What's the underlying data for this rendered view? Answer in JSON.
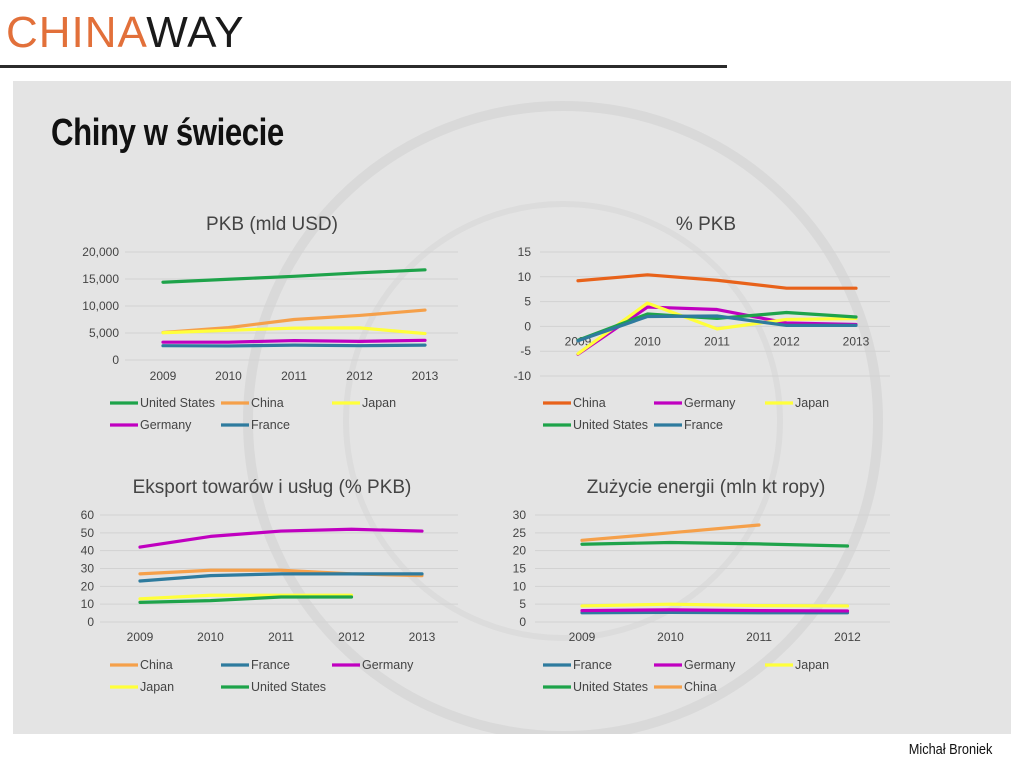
{
  "logo": {
    "part1": "CHINA",
    "part2": "WAY"
  },
  "slide_title": "Chiny w świecie",
  "author": "Michał Broniek",
  "chart_data": [
    {
      "type": "line",
      "title": "PKB (mld USD)",
      "x": [
        "2009",
        "2010",
        "2011",
        "2012",
        "2013"
      ],
      "ylim": [
        0,
        20000
      ],
      "yticks": [
        "0",
        "5,000",
        "10,000",
        "15,000",
        "20,000"
      ],
      "ytick_values": [
        0,
        5000,
        10000,
        15000,
        20000
      ],
      "legend": "bottom",
      "series": [
        {
          "name": "United States",
          "color": "#1ea34a",
          "values": [
            14400,
            14950,
            15500,
            16150,
            16700
          ]
        },
        {
          "name": "China",
          "color": "#f5a04a",
          "values": [
            5100,
            6000,
            7500,
            8250,
            9250
          ]
        },
        {
          "name": "Japan",
          "color": "#ffff3a",
          "values": [
            5050,
            5500,
            5900,
            5950,
            4900
          ]
        },
        {
          "name": "Germany",
          "color": "#c000c0",
          "values": [
            3300,
            3300,
            3600,
            3450,
            3650
          ]
        },
        {
          "name": "France",
          "color": "#2e7b9e",
          "values": [
            2650,
            2600,
            2750,
            2650,
            2750
          ]
        }
      ]
    },
    {
      "type": "line",
      "title": "% PKB",
      "x": [
        "2009",
        "2010",
        "2011",
        "2012",
        "2013"
      ],
      "ylim": [
        -10,
        15
      ],
      "yticks": [
        "-10",
        "-5",
        "0",
        "5",
        "10",
        "15"
      ],
      "ytick_values": [
        -10,
        -5,
        0,
        5,
        10,
        15
      ],
      "legend": "bottom",
      "series": [
        {
          "name": "China",
          "color": "#e8621a",
          "values": [
            9.2,
            10.4,
            9.3,
            7.7,
            7.7
          ]
        },
        {
          "name": "Germany",
          "color": "#c000c0",
          "values": [
            -5.6,
            3.9,
            3.4,
            0.7,
            0.4
          ]
        },
        {
          "name": "Japan",
          "color": "#ffff3a",
          "values": [
            -5.5,
            4.7,
            -0.5,
            1.4,
            1.6
          ]
        },
        {
          "name": "United States",
          "color": "#1ea34a",
          "values": [
            -2.8,
            2.5,
            1.6,
            2.8,
            1.9
          ]
        },
        {
          "name": "France",
          "color": "#2e7b9e",
          "values": [
            -2.9,
            2.0,
            2.1,
            0.2,
            0.2
          ]
        }
      ]
    },
    {
      "type": "line",
      "title": "Eksport towarów i usług  (% PKB)",
      "x": [
        "2009",
        "2010",
        "2011",
        "2012",
        "2013"
      ],
      "ylim": [
        0,
        60
      ],
      "yticks": [
        "0",
        "10",
        "20",
        "30",
        "40",
        "50",
        "60"
      ],
      "ytick_values": [
        0,
        10,
        20,
        30,
        40,
        50,
        60
      ],
      "legend": "bottom",
      "series": [
        {
          "name": "China",
          "color": "#f5a04a",
          "values": [
            27,
            29,
            29,
            27,
            26
          ]
        },
        {
          "name": "France",
          "color": "#2e7b9e",
          "values": [
            23,
            26,
            27,
            27,
            27
          ]
        },
        {
          "name": "Germany",
          "color": "#c000c0",
          "values": [
            42,
            48,
            51,
            52,
            51
          ]
        },
        {
          "name": "Japan",
          "color": "#ffff3a",
          "values": [
            13,
            15,
            15,
            15,
            null
          ]
        },
        {
          "name": "United States",
          "color": "#1ea34a",
          "values": [
            11,
            12,
            14,
            14,
            null
          ]
        }
      ]
    },
    {
      "type": "line",
      "title": "Zużycie energii (mln kt ropy)",
      "x": [
        "2009",
        "2010",
        "2011",
        "2012"
      ],
      "ylim": [
        0,
        30
      ],
      "yticks": [
        "0",
        "5",
        "10",
        "15",
        "20",
        "25",
        "30"
      ],
      "ytick_values": [
        0,
        5,
        10,
        15,
        20,
        25,
        30
      ],
      "legend": "bottom",
      "series": [
        {
          "name": "France",
          "color": "#2e7b9e",
          "values": [
            2.6,
            2.7,
            2.6,
            2.6
          ]
        },
        {
          "name": "Germany",
          "color": "#c000c0",
          "values": [
            3.2,
            3.4,
            3.2,
            3.1
          ]
        },
        {
          "name": "Japan",
          "color": "#ffff3a",
          "values": [
            4.5,
            5.0,
            4.6,
            4.5
          ]
        },
        {
          "name": "United States",
          "color": "#1ea34a",
          "values": [
            21.8,
            22.3,
            21.9,
            21.3
          ]
        },
        {
          "name": "China",
          "color": "#f5a04a",
          "values": [
            22.9,
            25.0,
            27.2,
            null
          ]
        }
      ]
    }
  ]
}
